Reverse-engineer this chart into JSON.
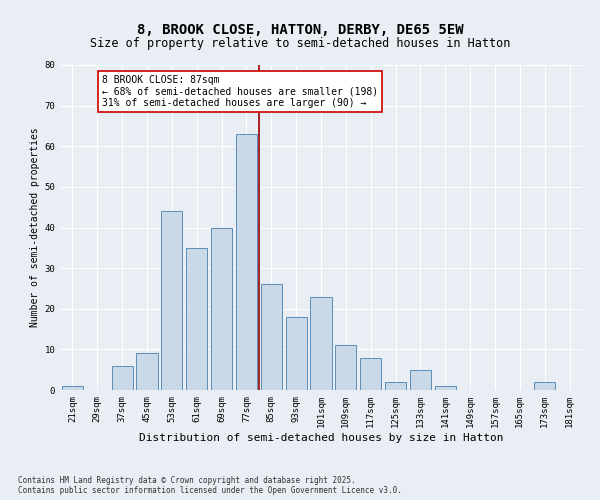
{
  "title": "8, BROOK CLOSE, HATTON, DERBY, DE65 5EW",
  "subtitle": "Size of property relative to semi-detached houses in Hatton",
  "xlabel": "Distribution of semi-detached houses by size in Hatton",
  "ylabel": "Number of semi-detached properties",
  "categories": [
    "21sqm",
    "29sqm",
    "37sqm",
    "45sqm",
    "53sqm",
    "61sqm",
    "69sqm",
    "77sqm",
    "85sqm",
    "93sqm",
    "101sqm",
    "109sqm",
    "117sqm",
    "125sqm",
    "133sqm",
    "141sqm",
    "149sqm",
    "157sqm",
    "165sqm",
    "173sqm",
    "181sqm"
  ],
  "values": [
    1,
    0,
    6,
    9,
    44,
    35,
    40,
    63,
    26,
    18,
    23,
    11,
    8,
    2,
    5,
    1,
    0,
    0,
    0,
    2,
    0
  ],
  "bar_color": "#c9d9e8",
  "bar_edge_color": "#5b8db8",
  "background_color": "#e8eef4",
  "grid_color": "#ffffff",
  "vline_index": 8,
  "vline_color": "#990000",
  "annotation_text": "8 BROOK CLOSE: 87sqm\n← 68% of semi-detached houses are smaller (198)\n31% of semi-detached houses are larger (90) →",
  "annotation_box_color": "#ffffff",
  "annotation_box_edge": "#cc0000",
  "ylim": [
    0,
    80
  ],
  "yticks": [
    0,
    10,
    20,
    30,
    40,
    50,
    60,
    70,
    80
  ],
  "footer": "Contains HM Land Registry data © Crown copyright and database right 2025.\nContains public sector information licensed under the Open Government Licence v3.0.",
  "title_fontsize": 10,
  "subtitle_fontsize": 8.5,
  "xlabel_fontsize": 8,
  "ylabel_fontsize": 7,
  "tick_fontsize": 6.5,
  "annotation_fontsize": 7,
  "footer_fontsize": 5.5
}
